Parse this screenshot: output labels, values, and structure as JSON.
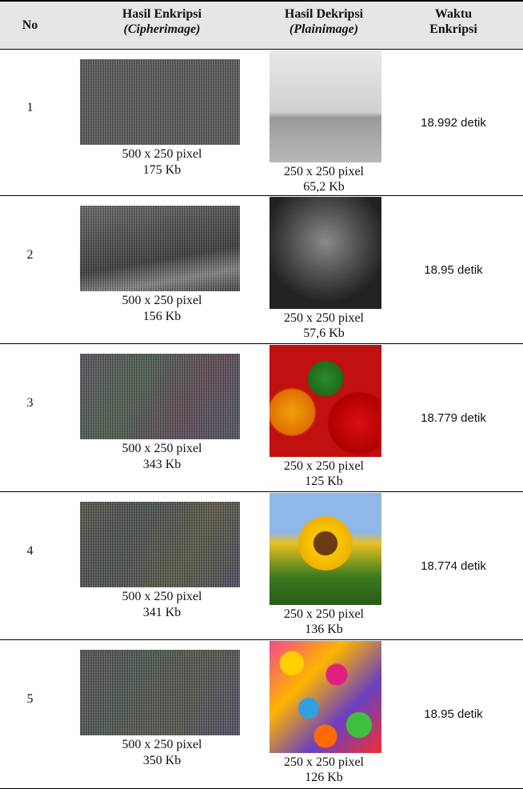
{
  "table": {
    "header": {
      "no": "No",
      "cipher": {
        "line1": "Hasil Enkripsi",
        "line2": "(Cipherimage)"
      },
      "plain": {
        "line1": "Hasil Dekripsi",
        "line2": "(Plainimage)"
      },
      "time": {
        "line1": "Waktu",
        "line2": "Enkripsi"
      }
    },
    "rows": [
      {
        "no": "1",
        "cipher_size": "500 x 250 pixel",
        "cipher_kb": "175 Kb",
        "plain_size": "250 x 250 pixel",
        "plain_kb": "65,2 Kb",
        "time": "18.992 detik"
      },
      {
        "no": "2",
        "cipher_size": "500 x 250 pixel",
        "cipher_kb": "156 Kb",
        "plain_size": "250 x 250 pixel",
        "plain_kb": "57,6 Kb",
        "time": "18.95 detik"
      },
      {
        "no": "3",
        "cipher_size": "500 x 250 pixel",
        "cipher_kb": "343 Kb",
        "plain_size": "250 x 250 pixel",
        "plain_kb": "125 Kb",
        "time": "18.779 detik"
      },
      {
        "no": "4",
        "cipher_size": "500 x 250 pixel",
        "cipher_kb": "341 Kb",
        "plain_size": "250 x 250 pixel",
        "plain_kb": "136 Kb",
        "time": "18.774 detik"
      },
      {
        "no": "5",
        "cipher_size": "500 x 250 pixel",
        "cipher_kb": "350 Kb",
        "plain_size": "250 x 250 pixel",
        "plain_kb": "126 Kb",
        "time": "18.95 detik"
      }
    ]
  }
}
